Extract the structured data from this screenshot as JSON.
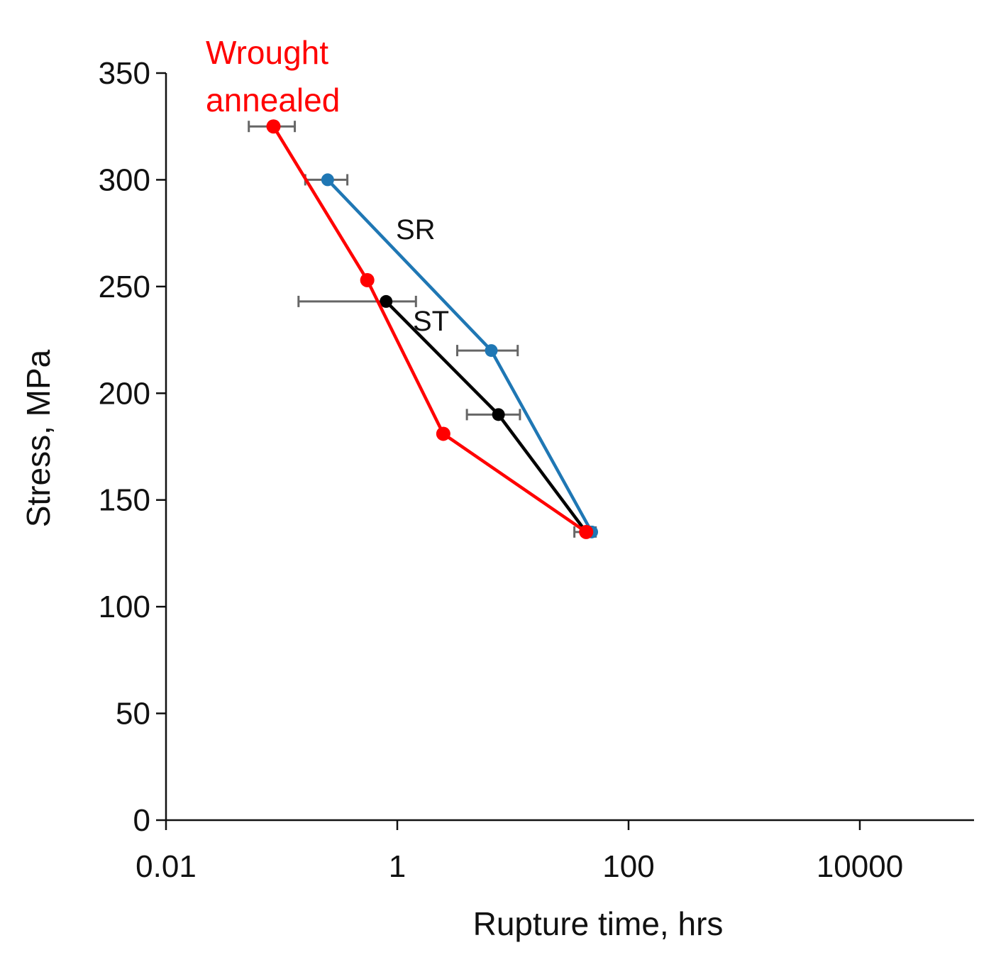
{
  "chart_data": {
    "type": "scatter",
    "xscale": "log",
    "xlabel": "Rupture time, hrs",
    "ylabel": "Stress, MPa",
    "xlim": [
      0.01,
      100000
    ],
    "ylim": [
      0,
      350
    ],
    "x_ticks": [
      0.01,
      1,
      100,
      10000
    ],
    "x_tick_labels": [
      "0.01",
      "1",
      "100",
      "10000"
    ],
    "y_ticks": [
      0,
      50,
      100,
      150,
      200,
      250,
      300,
      350
    ],
    "y_tick_labels": [
      "0",
      "50",
      "100",
      "150",
      "200",
      "250",
      "300",
      "350"
    ],
    "grid": false,
    "series": [
      {
        "name": "SR",
        "color": "#1f77b4",
        "points": [
          {
            "x": 0.25,
            "y": 300,
            "xerr": [
              0.16,
              0.37
            ]
          },
          {
            "x": 6.5,
            "y": 220,
            "xerr": [
              3.3,
              11.0
            ]
          },
          {
            "x": 48,
            "y": 135
          }
        ]
      },
      {
        "name": "ST",
        "color": "#000000",
        "points": [
          {
            "x": 0.8,
            "y": 243,
            "xerr": [
              0.14,
              1.45
            ]
          },
          {
            "x": 7.5,
            "y": 190,
            "xerr": [
              4.0,
              11.5
            ]
          },
          {
            "x": 43,
            "y": 135,
            "xerr": [
              34,
              52
            ]
          }
        ]
      },
      {
        "name": "Wrought annealed",
        "color": "#ff0000",
        "points": [
          {
            "x": 0.085,
            "y": 325,
            "xerr": [
              0.052,
              0.13
            ]
          },
          {
            "x": 0.55,
            "y": 253
          },
          {
            "x": 2.5,
            "y": 181
          },
          {
            "x": 43,
            "y": 135
          }
        ]
      }
    ],
    "annotations": {
      "sr": "SR",
      "st": "ST",
      "wrought_line1": "Wrought",
      "wrought_line2": "annealed"
    }
  }
}
